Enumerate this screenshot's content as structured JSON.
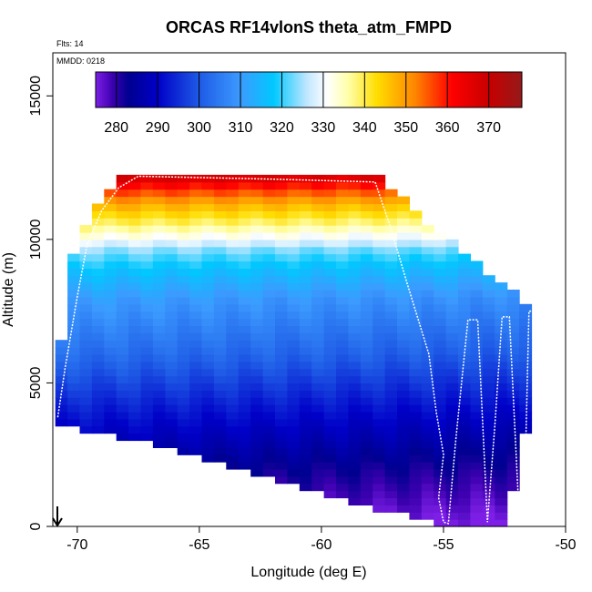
{
  "chart_data": {
    "type": "heatmap",
    "title": "ORCAS RF14vlonS theta_atm_FMPD",
    "annotations": {
      "flights": "Flts: 14",
      "date": "MMDD: 0218"
    },
    "xlabel": "Longitude (deg E)",
    "ylabel": "Altitude (m)",
    "xlim": [
      -71,
      -50
    ],
    "ylim": [
      0,
      16500
    ],
    "xticks": [
      -70,
      -65,
      -60,
      -55,
      -50
    ],
    "yticks": [
      0,
      5000,
      10000,
      15000
    ],
    "colorbar": {
      "range": [
        275,
        378
      ],
      "ticks": [
        280,
        290,
        300,
        310,
        320,
        330,
        340,
        350,
        360,
        370
      ],
      "stops": [
        {
          "v": 275,
          "c": "#7d1fe6"
        },
        {
          "v": 279,
          "c": "#3d00b0"
        },
        {
          "v": 283,
          "c": "#000090"
        },
        {
          "v": 290,
          "c": "#0000c8"
        },
        {
          "v": 300,
          "c": "#1e5ae6"
        },
        {
          "v": 310,
          "c": "#3c9bff"
        },
        {
          "v": 318,
          "c": "#00c8ff"
        },
        {
          "v": 326,
          "c": "#bfe6ff"
        },
        {
          "v": 331,
          "c": "#ffffff"
        },
        {
          "v": 336,
          "c": "#ffffaa"
        },
        {
          "v": 343,
          "c": "#ffdd00"
        },
        {
          "v": 352,
          "c": "#ff8800"
        },
        {
          "v": 361,
          "c": "#ff0000"
        },
        {
          "v": 370,
          "c": "#c80000"
        },
        {
          "v": 378,
          "c": "#961919"
        }
      ]
    },
    "data_envelope": {
      "lon_range": [
        -70.9,
        -51.5
      ],
      "top_profile": [
        {
          "lon": -70.9,
          "alt": 5000
        },
        {
          "lon": -70.1,
          "alt": 9800
        },
        {
          "lon": -69.0,
          "alt": 11300
        },
        {
          "lon": -68.3,
          "alt": 12200
        },
        {
          "lon": -57.7,
          "alt": 12200
        },
        {
          "lon": -56.0,
          "alt": 10700
        },
        {
          "lon": -54.0,
          "alt": 9300
        },
        {
          "lon": -52.5,
          "alt": 8300
        },
        {
          "lon": -51.5,
          "alt": 7500
        }
      ],
      "bottom_profile": [
        {
          "lon": -70.9,
          "alt": 3700
        },
        {
          "lon": -67.0,
          "alt": 3000
        },
        {
          "lon": -63.0,
          "alt": 2000
        },
        {
          "lon": -58.0,
          "alt": 800
        },
        {
          "lon": -55.0,
          "alt": 200
        },
        {
          "lon": -52.5,
          "alt": 200
        },
        {
          "lon": -51.5,
          "alt": 3800
        }
      ],
      "theta_profile": [
        {
          "alt": 0,
          "theta": 277
        },
        {
          "alt": 2000,
          "theta": 284
        },
        {
          "alt": 4000,
          "theta": 293
        },
        {
          "alt": 6000,
          "theta": 303
        },
        {
          "alt": 8000,
          "theta": 311
        },
        {
          "alt": 9000,
          "theta": 318
        },
        {
          "alt": 9600,
          "theta": 324
        },
        {
          "alt": 10000,
          "theta": 331
        },
        {
          "alt": 10600,
          "theta": 340
        },
        {
          "alt": 11300,
          "theta": 350
        },
        {
          "alt": 11900,
          "theta": 362
        },
        {
          "alt": 12300,
          "theta": 372
        }
      ]
    },
    "flight_track": [
      {
        "lon": -70.8,
        "alt": 3800
      },
      {
        "lon": -70.5,
        "alt": 5500
      },
      {
        "lon": -70.0,
        "alt": 8000
      },
      {
        "lon": -69.6,
        "alt": 9800
      },
      {
        "lon": -69.0,
        "alt": 11000
      },
      {
        "lon": -68.3,
        "alt": 11800
      },
      {
        "lon": -67.5,
        "alt": 12200
      },
      {
        "lon": -62.0,
        "alt": 12100
      },
      {
        "lon": -57.8,
        "alt": 12000
      },
      {
        "lon": -57.2,
        "alt": 10500
      },
      {
        "lon": -56.5,
        "alt": 8500
      },
      {
        "lon": -55.6,
        "alt": 6000
      },
      {
        "lon": -55.3,
        "alt": 4000
      },
      {
        "lon": -55.0,
        "alt": 2500
      },
      {
        "lon": -55.2,
        "alt": 1000
      },
      {
        "lon": -55.0,
        "alt": 150
      },
      {
        "lon": -54.8,
        "alt": 100
      },
      {
        "lon": -54.5,
        "alt": 3000
      },
      {
        "lon": -54.0,
        "alt": 7200
      },
      {
        "lon": -53.6,
        "alt": 7200
      },
      {
        "lon": -53.2,
        "alt": 150
      },
      {
        "lon": -52.9,
        "alt": 3500
      },
      {
        "lon": -52.6,
        "alt": 7300
      },
      {
        "lon": -52.3,
        "alt": 7300
      },
      {
        "lon": -51.9,
        "alt": 300
      },
      {
        "lon": -51.7,
        "alt": 400
      },
      {
        "lon": -51.5,
        "alt": 7500
      },
      {
        "lon": -51.3,
        "alt": 7500
      }
    ]
  }
}
